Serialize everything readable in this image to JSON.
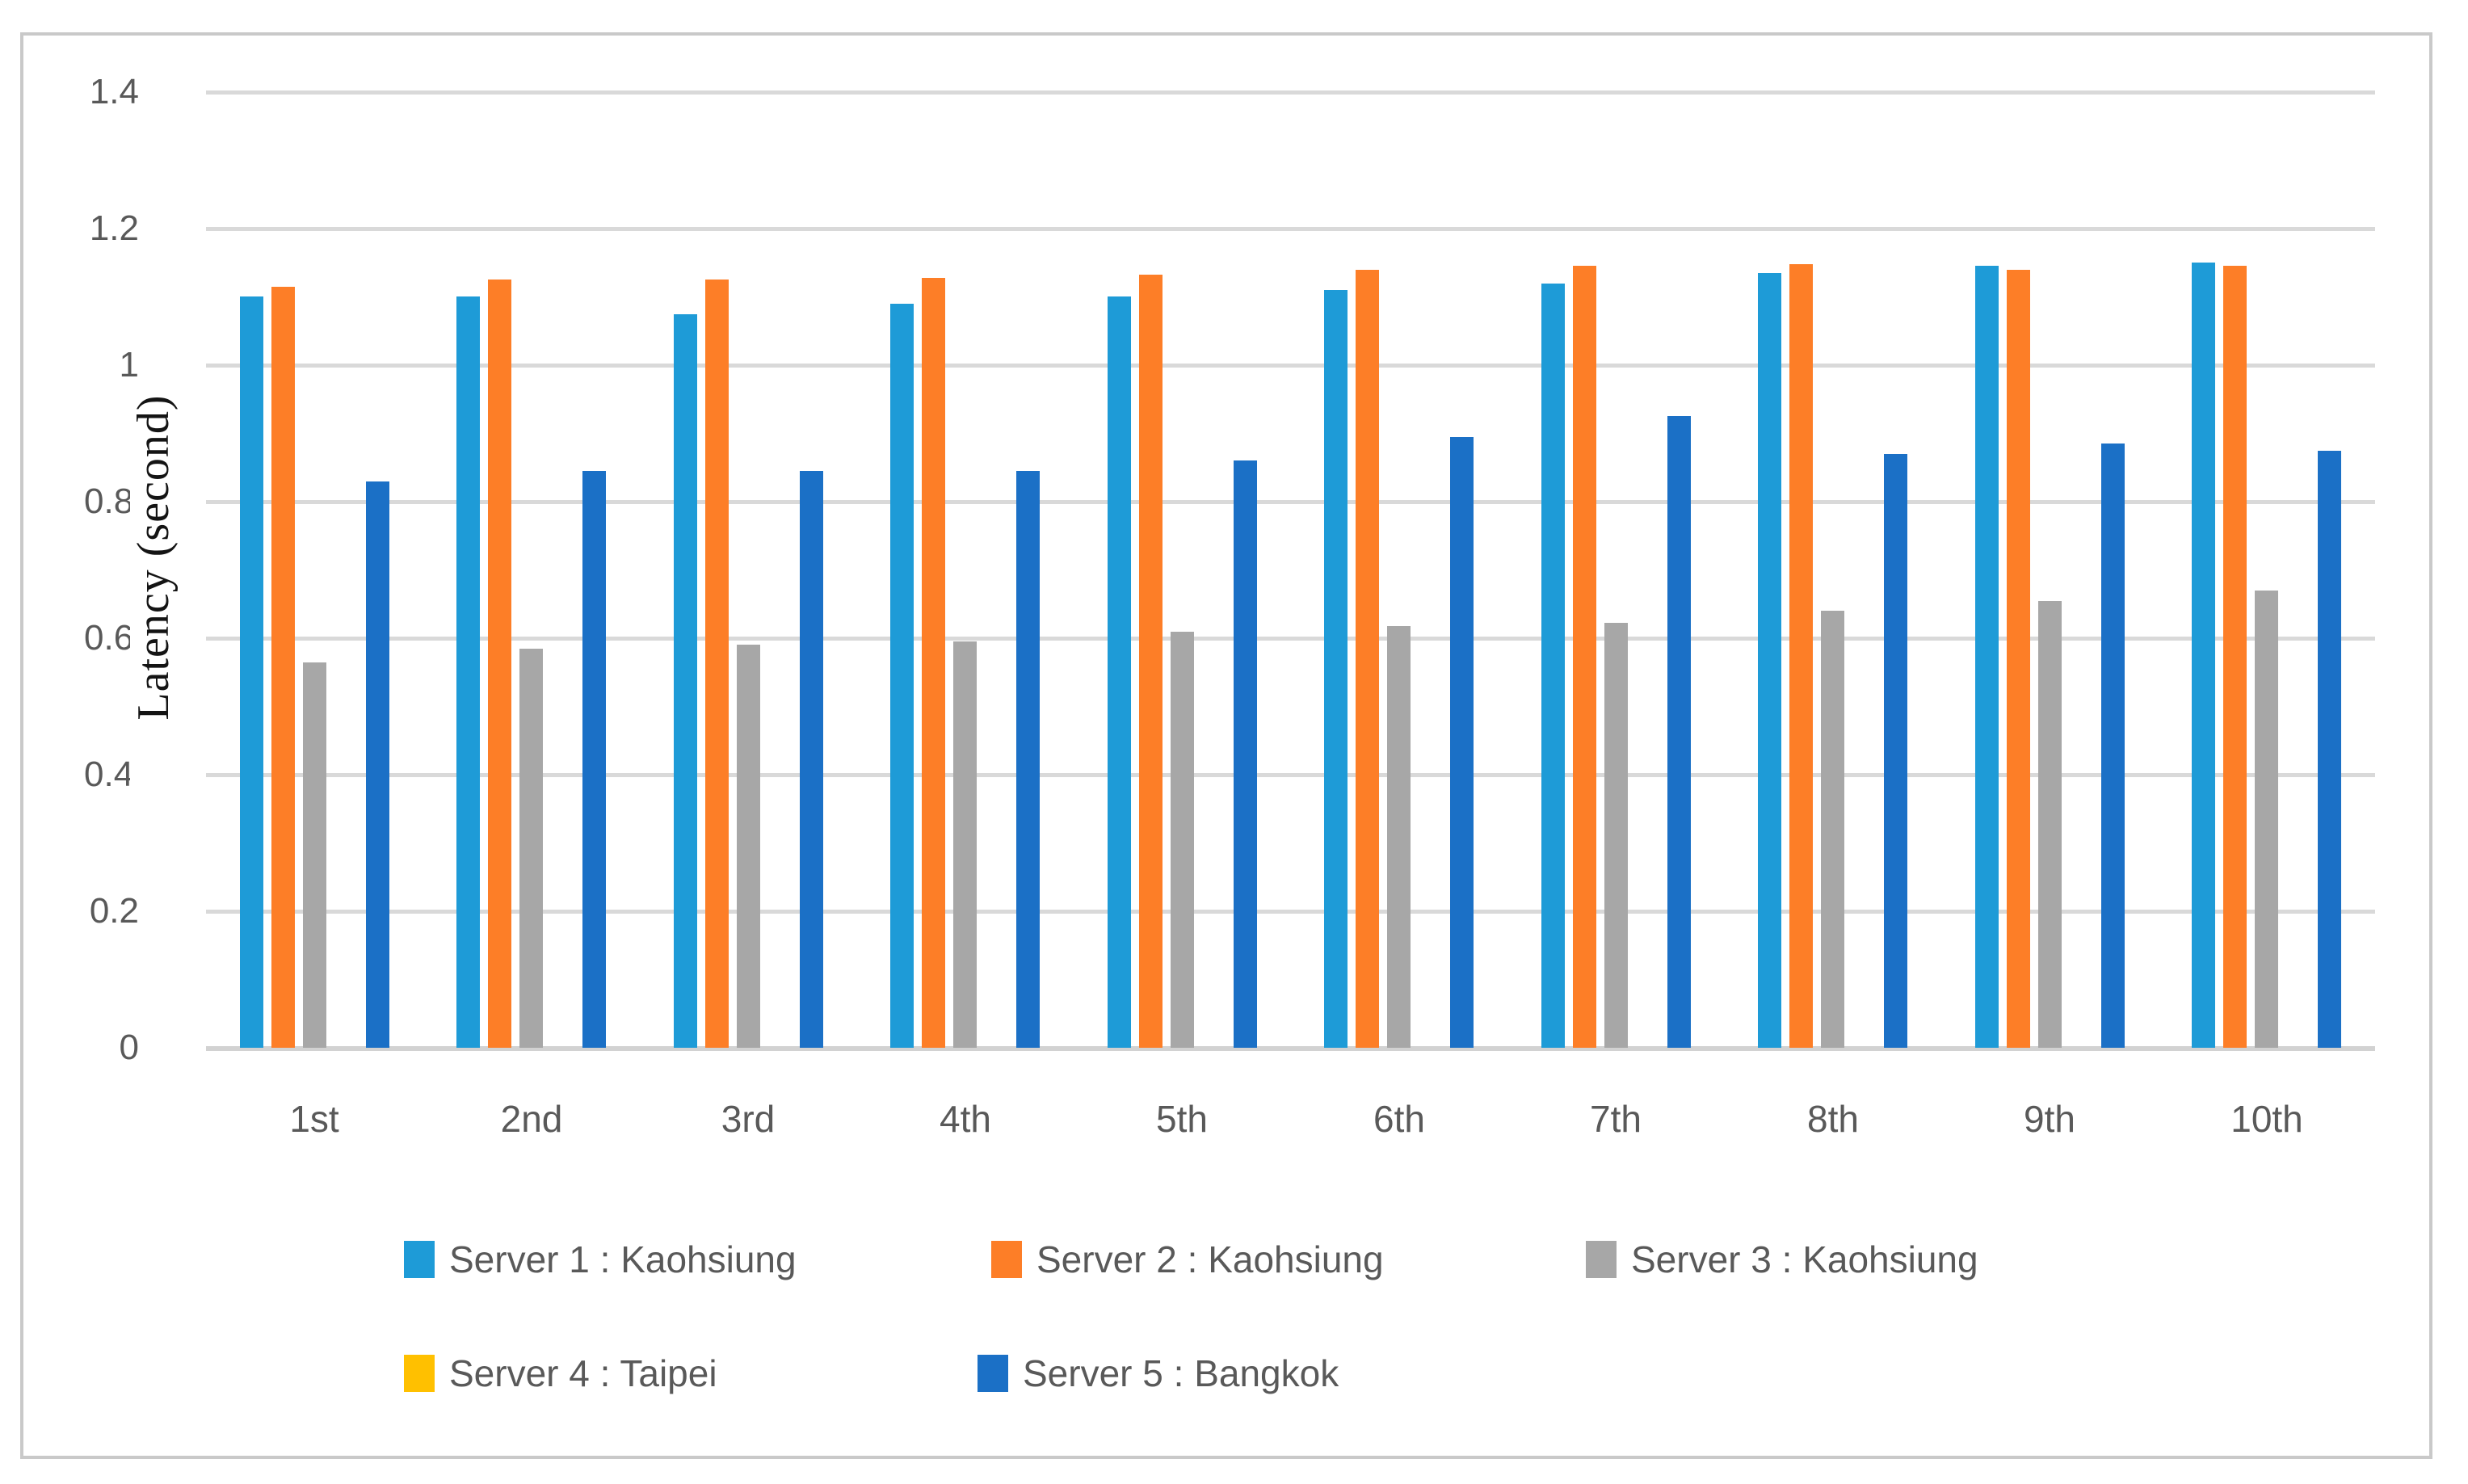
{
  "chart_data": {
    "type": "bar",
    "title": "",
    "xlabel": "",
    "ylabel": "Latency (second)",
    "ylim": [
      0,
      1.4
    ],
    "ytick_step": 0.2,
    "grid": true,
    "legend_position": "bottom",
    "categories": [
      "1st",
      "2nd",
      "3rd",
      "4th",
      "5th",
      "6th",
      "7th",
      "8th",
      "9th",
      "10th"
    ],
    "series": [
      {
        "name": "Server 1 : Kaohsiung",
        "color": "#1E9BD7",
        "values": [
          1.1,
          1.1,
          1.075,
          1.09,
          1.1,
          1.11,
          1.12,
          1.135,
          1.145,
          1.15
        ]
      },
      {
        "name": "Server 2 : Kaohsiung",
        "color": "#FD7E27",
        "values": [
          1.115,
          1.125,
          1.125,
          1.128,
          1.132,
          1.14,
          1.145,
          1.148,
          1.14,
          1.145
        ]
      },
      {
        "name": "Server 3 : Kaohsiung",
        "color": "#A7A7A7",
        "values": [
          0.565,
          0.585,
          0.59,
          0.595,
          0.61,
          0.618,
          0.623,
          0.64,
          0.655,
          0.67
        ]
      },
      {
        "name": "Server 4 : Taipei",
        "color": "#FFC000",
        "values": [
          0,
          0,
          0,
          0,
          0,
          0,
          0,
          0,
          0,
          0
        ]
      },
      {
        "name": "Server 5 : Bangkok",
        "color": "#1B70C6",
        "values": [
          0.83,
          0.845,
          0.845,
          0.845,
          0.86,
          0.895,
          0.925,
          0.87,
          0.885,
          0.875
        ]
      }
    ],
    "yticks": [
      {
        "value": 1.4,
        "label": "1.4",
        "clipped": false
      },
      {
        "value": 1.2,
        "label": "1.2",
        "clipped": false
      },
      {
        "value": 1.0,
        "label": "1",
        "clipped": false
      },
      {
        "value": 0.8,
        "label": "0.8",
        "clipped": true
      },
      {
        "value": 0.6,
        "label": "0.6",
        "clipped": true
      },
      {
        "value": 0.4,
        "label": "0.4",
        "clipped": true
      },
      {
        "value": 0.2,
        "label": "0.2",
        "clipped": false
      },
      {
        "value": 0.0,
        "label": "0",
        "clipped": false
      }
    ]
  },
  "colors": {
    "gridline": "#d9d9d9",
    "axis_line": "#d2d2d2",
    "chart_border": "#c9c9c9",
    "tick_text": "#595959",
    "axis_title_text": "#141414"
  }
}
